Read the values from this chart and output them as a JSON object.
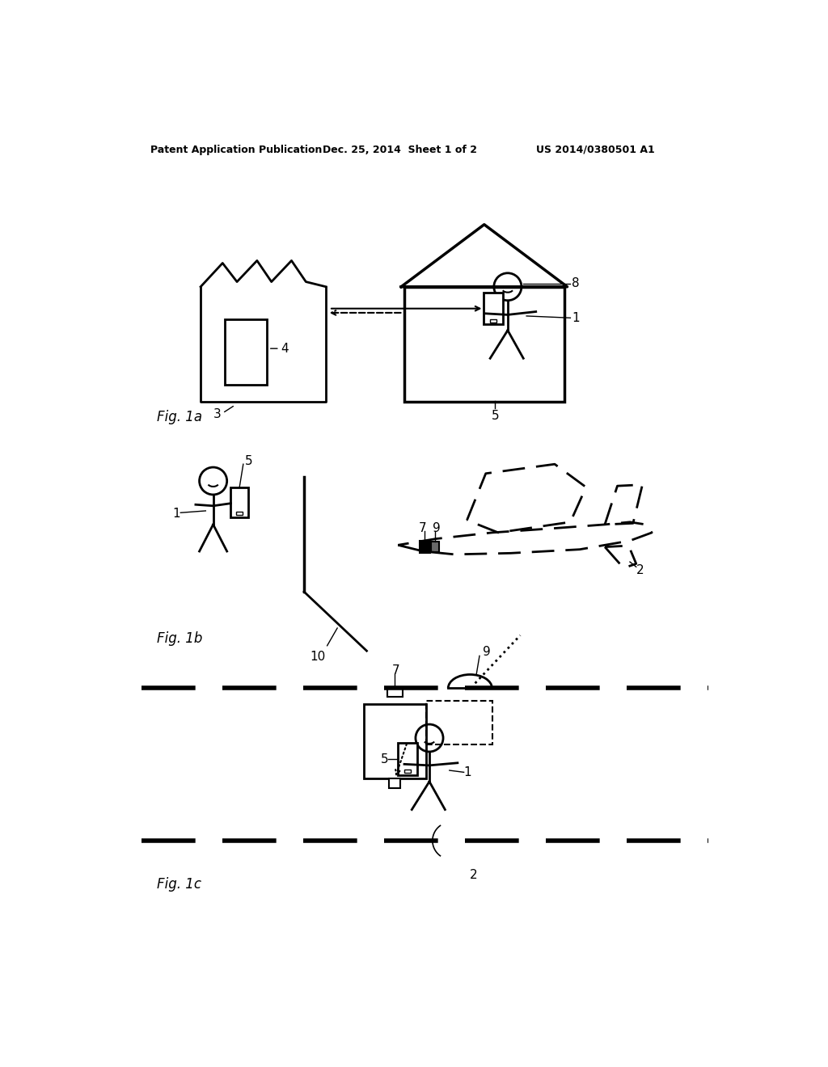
{
  "background_color": "#ffffff",
  "header_left": "Patent Application Publication",
  "header_mid": "Dec. 25, 2014  Sheet 1 of 2",
  "header_right": "US 2014/0380501 A1"
}
